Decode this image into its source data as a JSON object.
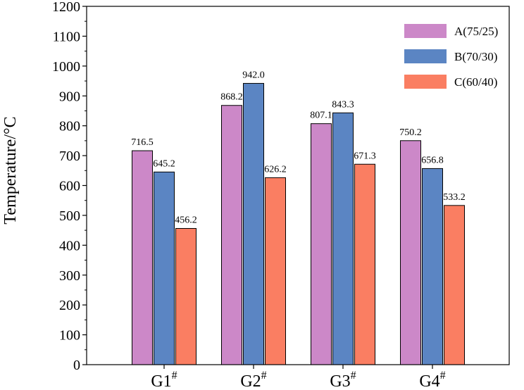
{
  "chart_data": {
    "type": "bar",
    "title": "",
    "xlabel": "",
    "ylabel": "Temperature/°C",
    "ylim": [
      0,
      1200
    ],
    "ytick_step": 100,
    "grid": false,
    "legend_position": "top-right",
    "categories": [
      {
        "name": "G1",
        "sup": "#"
      },
      {
        "name": "G2",
        "sup": "#"
      },
      {
        "name": "G3",
        "sup": "#"
      },
      {
        "name": "G4",
        "sup": "#"
      }
    ],
    "series": [
      {
        "name": "A(75/25)",
        "color": "#cc88c8",
        "values": [
          716.5,
          868.2,
          807.1,
          750.2
        ],
        "labels": [
          "716.5",
          "868.2",
          "807.1",
          "750.2"
        ]
      },
      {
        "name": "B(70/30)",
        "color": "#5b85c3",
        "values": [
          645.2,
          942.0,
          843.3,
          656.8
        ],
        "labels": [
          "645.2",
          "942.0",
          "843.3",
          "656.8"
        ]
      },
      {
        "name": "C(60/40)",
        "color": "#fa7e62",
        "values": [
          456.2,
          626.2,
          671.3,
          533.2
        ],
        "labels": [
          "456.2",
          "626.2",
          "671.3",
          "533.2"
        ]
      }
    ]
  }
}
